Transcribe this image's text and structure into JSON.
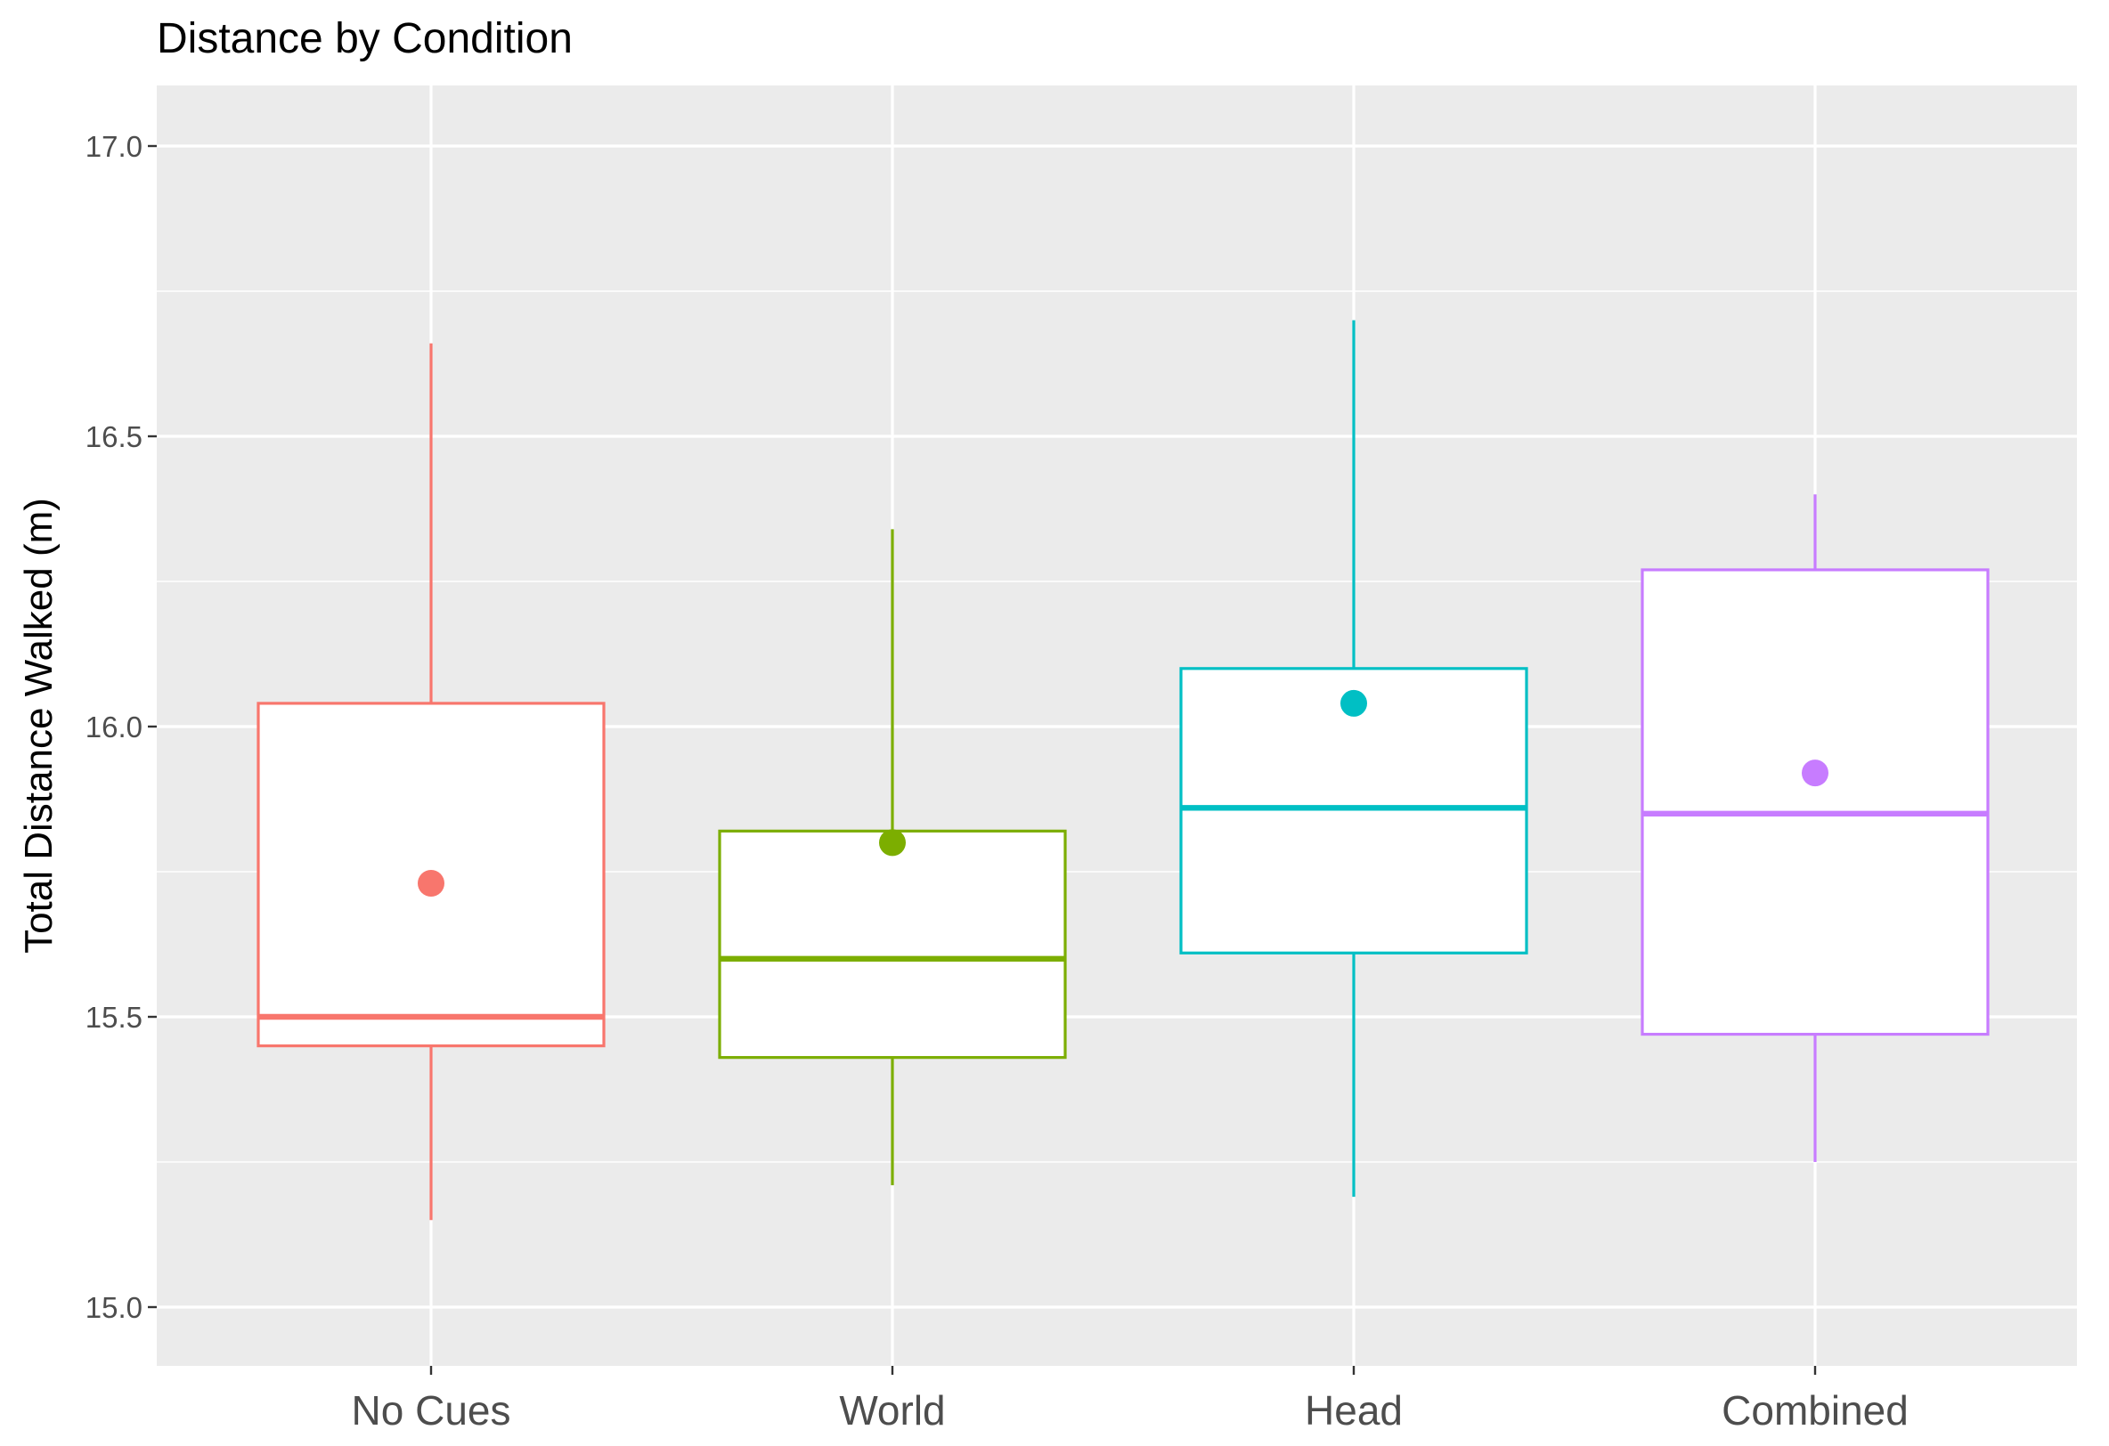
{
  "chart_data": {
    "type": "box",
    "title": "Distance by Condition",
    "xlabel": "",
    "ylabel": "Total Distance Walked (m)",
    "ylim": [
      14.9,
      17.1
    ],
    "y_ticks": [
      "15.0",
      "15.5",
      "16.0",
      "16.5",
      "17.0"
    ],
    "y_tick_values": [
      15.0,
      15.5,
      16.0,
      16.5,
      17.0
    ],
    "categories": [
      "No Cues",
      "World",
      "Head",
      "Combined"
    ],
    "grid": true,
    "legend": "none",
    "panel_background": "#ebebeb",
    "grid_color": "#ffffff",
    "series": [
      {
        "category": "No Cues",
        "color": "#f8766d",
        "whisker_low": 15.15,
        "q1": 15.45,
        "median": 15.5,
        "q3": 16.04,
        "whisker_high": 16.66,
        "mean": 15.73
      },
      {
        "category": "World",
        "color": "#7cae00",
        "whisker_low": 15.21,
        "q1": 15.43,
        "median": 15.6,
        "q3": 15.82,
        "whisker_high": 16.34,
        "mean": 15.8
      },
      {
        "category": "Head",
        "color": "#00bfc4",
        "whisker_low": 15.19,
        "q1": 15.61,
        "median": 15.86,
        "q3": 16.1,
        "whisker_high": 16.7,
        "mean": 16.04
      },
      {
        "category": "Combined",
        "color": "#c77cff",
        "whisker_low": 15.25,
        "q1": 15.47,
        "median": 15.85,
        "q3": 16.27,
        "whisker_high": 16.4,
        "mean": 15.92
      }
    ]
  }
}
